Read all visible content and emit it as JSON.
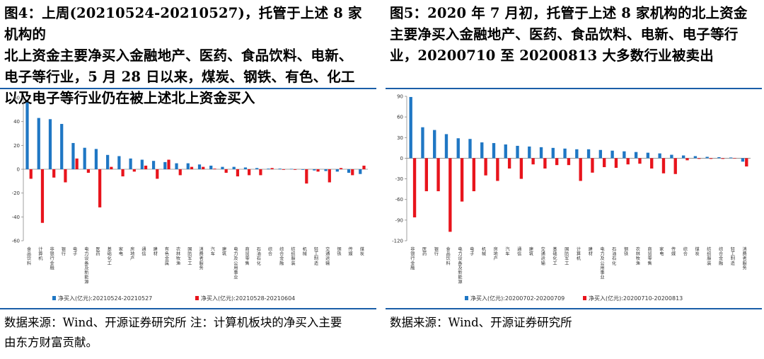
{
  "figures": [
    {
      "id": "left",
      "title_lines": [
        "图4：上周(20210524-20210527)，托管于上述 8 家机构的",
        "北上资金主要净买入金融地产、医药、食品饮料、电新、",
        "电子等行业，5 月 28 日以来，煤炭、钢铁、有色、化工",
        "以及电子等行业仍在被上述北上资金买入"
      ],
      "source_lines": [
        "数据来源：Wind、开源证券研究所  注：计算机板块的净买入主要",
        "由东方财富贡献。"
      ],
      "chart_data": {
        "type": "bar",
        "ylim": [
          -60,
          60
        ],
        "yticks": [
          60,
          40,
          20,
          0,
          -20,
          -40,
          -60
        ],
        "yticklabels": [
          "60",
          "40",
          "20",
          "0",
          "-20",
          "-40",
          "-60"
        ],
        "categories": [
          "食品饮料",
          "计算机",
          "非银行金融",
          "银行",
          "电子",
          "电力设备及新能源",
          "医药",
          "基础化工",
          "家电",
          "房地产",
          "通信",
          "建材",
          "有色金属",
          "农林牧渔",
          "国防军工",
          "消费者服务",
          "汽车",
          "建筑",
          "电力及公用事业",
          "商贸零售",
          "石油石化",
          "综合",
          "综合金融",
          "纺织服装",
          "机械",
          "轻工制造",
          "交通运输",
          "钢铁",
          "传媒",
          "煤炭"
        ],
        "series": [
          {
            "name": "净买入(亿元):20210524-20210527",
            "color": "#1f77c4",
            "values": [
              56,
              43,
              42,
              38,
              22,
              18,
              17,
              12,
              11,
              9,
              8,
              7,
              6,
              5,
              5,
              4,
              3,
              2,
              2,
              1.5,
              1,
              0.5,
              0.5,
              0.3,
              -0.5,
              -1,
              -1.5,
              -2,
              -3,
              -4
            ]
          },
          {
            "name": "净买入(亿元):20210528-20210604",
            "color": "#e8141c",
            "values": [
              -8,
              -45,
              -7,
              -11,
              9,
              -3,
              -32,
              2,
              -6,
              -2,
              3,
              -8,
              8,
              -5,
              2,
              2,
              0.5,
              -3,
              -6,
              -5,
              -5,
              1,
              -0.5,
              -0.5,
              -12,
              -2,
              -11,
              1,
              -5,
              3
            ]
          }
        ]
      }
    },
    {
      "id": "right",
      "title_lines": [
        "图5：2020 年 7 月初，托管于上述 8 家机构的北上资金",
        "主要净买入金融地产、医药、食品饮料、电新、电子等行",
        "业，20200710 至 20200813 大多数行业被卖出"
      ],
      "source_lines": [
        "数据来源：Wind、开源证券研究所"
      ],
      "chart_data": {
        "type": "bar",
        "ylim": [
          -120,
          90
        ],
        "yticks": [
          90,
          60,
          30,
          0,
          -30,
          -60,
          -90,
          -120
        ],
        "yticklabels": [
          "90",
          "60",
          "30",
          "0",
          "-30",
          "-60",
          "-90",
          "-120"
        ],
        "categories": [
          "非银行金融",
          "医药",
          "银行",
          "食品饮料",
          "电力设备及新能源",
          "电子",
          "机械",
          "房地产",
          "汽车",
          "通信",
          "建筑",
          "交通运输",
          "基础化工",
          "国防军工",
          "计算机",
          "建材",
          "电力及公用事业",
          "石油石化",
          "钢铁",
          "农林牧渔",
          "商贸零售",
          "家电",
          "传媒",
          "综合",
          "煤炭",
          "纺织服装",
          "综合金融",
          "轻工制造",
          "消费者服务"
        ],
        "series": [
          {
            "name": "净买入(亿元):20200702-20200709",
            "color": "#1f77c4",
            "values": [
              89,
              45,
              41,
              35,
              29,
              28,
              23,
              22,
              20,
              18,
              17,
              16,
              15,
              14,
              13,
              13,
              12,
              11,
              10,
              9,
              8,
              7,
              5,
              4,
              3,
              2,
              1.5,
              1,
              -5
            ]
          },
          {
            "name": "净买入(亿元):20200710-20200813",
            "color": "#e8141c",
            "values": [
              -86,
              -48,
              -48,
              -107,
              -63,
              -48,
              -25,
              -33,
              -15,
              -30,
              -9,
              -15,
              -10,
              -10,
              -33,
              -21,
              -13,
              -14,
              -9,
              -8,
              -15,
              -22,
              -23,
              -3,
              -1,
              -1,
              -1,
              0,
              -12
            ]
          }
        ]
      }
    }
  ]
}
